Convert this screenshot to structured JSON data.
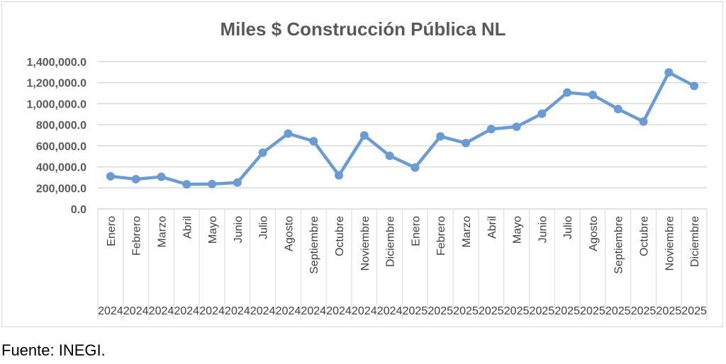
{
  "chart_data": {
    "type": "line",
    "title": "Miles $ Construcción Pública NL",
    "xlabel": "",
    "ylabel": "",
    "ylim": [
      0,
      1400000
    ],
    "yticks": [
      0,
      200000,
      400000,
      600000,
      800000,
      1000000,
      1200000,
      1400000
    ],
    "ytick_labels": [
      "0.0",
      "200,000.0",
      "400,000.0",
      "600,000.0",
      "800,000.0",
      "1,000,000.0",
      "1,200,000.0",
      "1,400,000.0"
    ],
    "grid": true,
    "categories": [
      {
        "month": "Enero",
        "year": "2024"
      },
      {
        "month": "Febrero",
        "year": "2024"
      },
      {
        "month": "Marzo",
        "year": "2024"
      },
      {
        "month": "Abril",
        "year": "2024"
      },
      {
        "month": "Mayo",
        "year": "2024"
      },
      {
        "month": "Junio",
        "year": "2024"
      },
      {
        "month": "Julio",
        "year": "2024"
      },
      {
        "month": "Agosto",
        "year": "2024"
      },
      {
        "month": "Septiembre",
        "year": "2024"
      },
      {
        "month": "Octubre",
        "year": "2024"
      },
      {
        "month": "Noviembre",
        "year": "2024"
      },
      {
        "month": "Diciembre",
        "year": "2024"
      },
      {
        "month": "Enero",
        "year": "2025"
      },
      {
        "month": "Febrero",
        "year": "2025"
      },
      {
        "month": "Marzo",
        "year": "2025"
      },
      {
        "month": "Abril",
        "year": "2025"
      },
      {
        "month": "Mayo",
        "year": "2025"
      },
      {
        "month": "Junio",
        "year": "2025"
      },
      {
        "month": "Julio",
        "year": "2025"
      },
      {
        "month": "Agosto",
        "year": "2025"
      },
      {
        "month": "Septiembre",
        "year": "2025"
      },
      {
        "month": "Octubre",
        "year": "2025"
      },
      {
        "month": "Noviembre",
        "year": "2025"
      },
      {
        "month": "Diciembre",
        "year": "2025"
      }
    ],
    "series": [
      {
        "name": "Miles $",
        "color": "#6a9bd2",
        "values": [
          310000,
          283000,
          305000,
          234000,
          236000,
          251000,
          534000,
          716000,
          644000,
          319000,
          698000,
          505000,
          393000,
          689000,
          626000,
          759000,
          781000,
          905000,
          1106000,
          1084000,
          949000,
          830000,
          1297000,
          1169000
        ]
      }
    ]
  },
  "source": "Fuente: INEGI."
}
